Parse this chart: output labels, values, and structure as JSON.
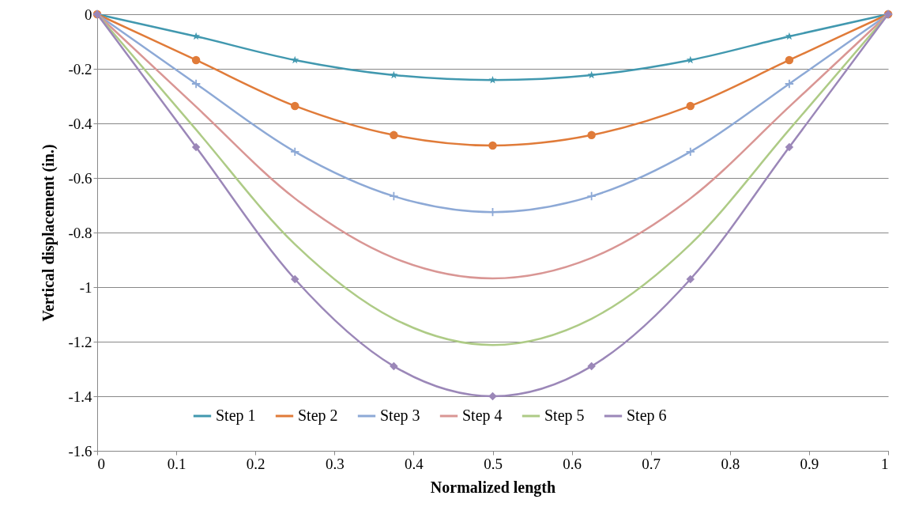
{
  "chart_data": {
    "type": "line",
    "xlabel": "Normalized length",
    "ylabel": "Vertical displacement (in.)",
    "x": [
      0,
      0.125,
      0.25,
      0.375,
      0.5,
      0.625,
      0.75,
      0.875,
      1
    ],
    "xlim": [
      0,
      1
    ],
    "xticks": [
      0,
      0.1,
      0.2,
      0.3,
      0.4,
      0.5,
      0.6,
      0.7,
      0.8,
      0.9,
      1
    ],
    "ylim": [
      -1.6,
      0
    ],
    "yticks": [
      -1.6,
      -1.4,
      -1.2,
      -1,
      -0.8,
      -0.6,
      -0.4,
      -0.2,
      0
    ],
    "grid": "y",
    "legend": "bottom",
    "line_style": "solid",
    "series": [
      {
        "name": "Step 1",
        "color": "#4198af",
        "marker": "star",
        "values": [
          0,
          -0.081,
          -0.168,
          -0.223,
          -0.241,
          -0.223,
          -0.168,
          -0.081,
          0
        ]
      },
      {
        "name": "Step 2",
        "color": "#e07b39",
        "marker": "circle",
        "values": [
          0,
          -0.168,
          -0.336,
          -0.443,
          -0.481,
          -0.443,
          -0.336,
          -0.168,
          0
        ]
      },
      {
        "name": "Step 3",
        "color": "#8da9d6",
        "marker": "cross",
        "values": [
          0,
          -0.255,
          -0.504,
          -0.667,
          -0.725,
          -0.667,
          -0.504,
          -0.255,
          0
        ]
      },
      {
        "name": "Step 4",
        "color": "#d99694",
        "marker": "none",
        "values": [
          0,
          -0.339,
          -0.675,
          -0.893,
          -0.968,
          -0.893,
          -0.675,
          -0.339,
          0
        ]
      },
      {
        "name": "Step 5",
        "color": "#aecb86",
        "marker": "none",
        "values": [
          0,
          -0.423,
          -0.843,
          -1.116,
          -1.212,
          -1.116,
          -0.843,
          -0.423,
          0
        ]
      },
      {
        "name": "Step 6",
        "color": "#9b87b8",
        "marker": "diamond",
        "values": [
          0,
          -0.487,
          -0.971,
          -1.29,
          -1.4,
          -1.29,
          -0.971,
          -0.487,
          0
        ]
      }
    ]
  }
}
